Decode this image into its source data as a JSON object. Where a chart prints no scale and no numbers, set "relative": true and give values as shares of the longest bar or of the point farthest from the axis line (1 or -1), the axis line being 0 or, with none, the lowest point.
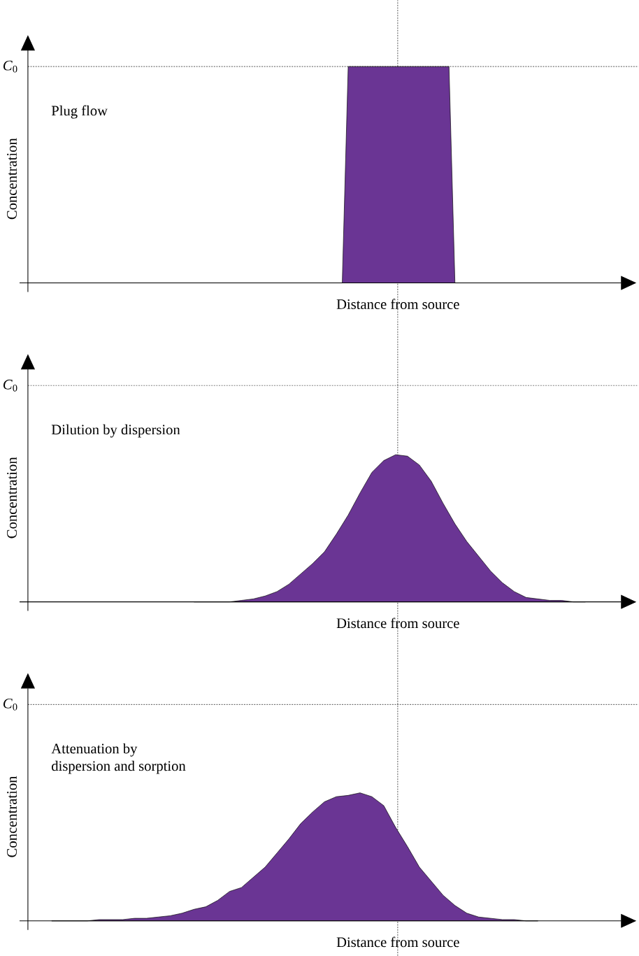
{
  "chart_data": [
    {
      "type": "area",
      "relative": true,
      "ylabel": "Concentration",
      "xlabel": "Distance from source",
      "annotations": [
        "Plug flow"
      ],
      "categories": [
        null,
        null,
        null,
        null,
        null,
        null,
        null,
        null,
        null,
        null,
        null,
        null,
        null,
        null,
        null,
        null,
        null,
        null,
        null,
        null,
        null,
        null,
        null,
        null,
        null,
        null,
        null,
        null,
        null,
        null,
        null,
        null,
        null,
        null,
        null,
        null,
        null,
        null,
        null,
        null,
        null,
        null,
        null,
        null,
        null,
        null,
        null,
        null,
        null,
        null,
        null,
        null,
        null,
        null,
        null,
        null,
        null,
        null,
        null,
        null,
        null,
        null,
        null,
        null,
        null,
        null,
        null,
        null,
        null,
        null,
        null,
        null,
        null,
        null,
        null,
        null,
        null,
        null,
        null,
        null,
        null,
        null,
        null,
        null,
        null,
        null,
        null,
        null,
        null,
        null,
        null,
        null,
        null,
        null,
        null,
        null,
        null,
        null,
        null,
        null,
        null
      ],
      "values": [
        0,
        0,
        0,
        0,
        0,
        0,
        0,
        0,
        0,
        0,
        0,
        0,
        0,
        0,
        0,
        0,
        0,
        0,
        0,
        0,
        0,
        0,
        0,
        0,
        0,
        0,
        0,
        0,
        0,
        0,
        0,
        0,
        0,
        0,
        0,
        0,
        0,
        0,
        0,
        0,
        0,
        0,
        0,
        0,
        0,
        0,
        0,
        0,
        0,
        0,
        0,
        0,
        0,
        0,
        1,
        1,
        1,
        1,
        1,
        1,
        1,
        1,
        1,
        1,
        1,
        1,
        1,
        1,
        1,
        1,
        1,
        1,
        0,
        0,
        0,
        0,
        0,
        0,
        0,
        0,
        0,
        0,
        0,
        0,
        0,
        0,
        0,
        0,
        0,
        0,
        0,
        0,
        0,
        0,
        0,
        0,
        0,
        0,
        0,
        0,
        0
      ],
      "color": "#6a3594",
      "ref_lines": [
        {
          "axis": "y",
          "value": 1,
          "label": "*C*$_{0}$",
          "line_style": "dashed"
        }
      ]
    },
    {
      "type": "area",
      "relative": true,
      "ylabel": "Concentration",
      "xlabel": "Distance from source",
      "annotations": [
        "Dilution by dispersion"
      ],
      "categories": [
        null,
        null,
        null,
        null,
        null,
        null,
        null,
        null,
        null,
        null,
        null,
        null,
        null,
        null,
        null,
        null,
        null,
        null,
        null,
        null,
        null,
        null,
        null,
        null,
        null,
        null,
        null,
        null,
        null,
        null,
        null,
        null,
        null,
        null,
        null,
        null,
        null,
        null,
        null,
        null,
        null,
        null,
        null,
        null,
        null,
        null,
        null,
        null,
        null,
        null,
        null
      ],
      "values": [
        null,
        null,
        null,
        null,
        null,
        null,
        null,
        null,
        null,
        null,
        null,
        null,
        null,
        null,
        0,
        0,
        0,
        0,
        0.01,
        0.02,
        0.04,
        0.07,
        0.12,
        0.19,
        0.26,
        0.34,
        0.46,
        0.59,
        0.74,
        0.88,
        0.96,
        1,
        0.99,
        0.93,
        0.82,
        0.67,
        0.53,
        0.41,
        0.31,
        0.21,
        0.13,
        0.07,
        0.03,
        0.02,
        0.01,
        0.01,
        0,
        0,
        null,
        null,
        null
      ],
      "color": "#6a3594",
      "ref_lines": [
        {
          "axis": "y",
          "value": 1.47,
          "label": "*C*$_{0}$",
          "line_style": "dashed"
        }
      ]
    },
    {
      "type": "area",
      "relative": true,
      "ylabel": "Concentration",
      "xlabel": "Distance from source",
      "annotations": [
        "Attenuation by",
        "dispersion and sorption"
      ],
      "categories": [
        null,
        null,
        null,
        null,
        null,
        null,
        null,
        null,
        null,
        null,
        null,
        null,
        null,
        null,
        null,
        null,
        null,
        null,
        null,
        null,
        null,
        null,
        null,
        null,
        null,
        null,
        null,
        null,
        null,
        null,
        null,
        null,
        null,
        null,
        null,
        null,
        null,
        null,
        null,
        null,
        null,
        null,
        null,
        null,
        null,
        null,
        null,
        null,
        null,
        null,
        null
      ],
      "values": [
        null,
        null,
        0,
        0,
        0,
        0,
        0.01,
        0.01,
        0.01,
        0.02,
        0.02,
        0.03,
        0.04,
        0.06,
        0.09,
        0.11,
        0.16,
        0.23,
        0.26,
        0.34,
        0.42,
        0.53,
        0.64,
        0.76,
        0.85,
        0.93,
        0.97,
        0.98,
        1,
        0.97,
        0.9,
        0.73,
        0.58,
        0.42,
        0.31,
        0.2,
        0.12,
        0.06,
        0.03,
        0.02,
        0.01,
        0.01,
        0,
        0,
        null,
        null,
        null,
        null,
        null,
        null,
        null
      ],
      "color": "#6a3594",
      "ref_lines": [
        {
          "axis": "y",
          "value": 1.69,
          "label": "*C*$_{0}$",
          "line_style": "dashed"
        }
      ]
    }
  ]
}
